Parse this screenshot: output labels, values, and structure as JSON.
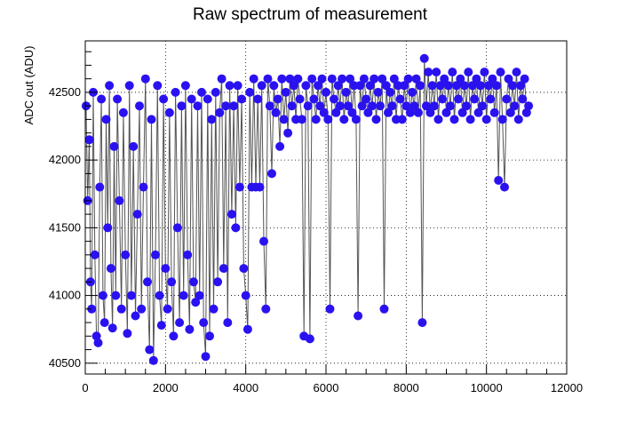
{
  "chart_data": {
    "type": "scatter",
    "title": "Raw spectrum of measurement",
    "xlabel": "",
    "ylabel": "ADC out (ADU)",
    "xlim": [
      0,
      12000
    ],
    "ylim": [
      40420,
      42880
    ],
    "x_ticks": [
      0,
      2000,
      4000,
      6000,
      8000,
      10000,
      12000
    ],
    "y_ticks": [
      40500,
      41000,
      41500,
      42000,
      42500
    ],
    "grid": true,
    "grid_style": "dotted",
    "marker_color": "#2a12f0",
    "line_color": "#555555",
    "series": [
      {
        "points": [
          [
            20,
            42400
          ],
          [
            60,
            41700
          ],
          [
            100,
            42150
          ],
          [
            130,
            41100
          ],
          [
            160,
            40900
          ],
          [
            200,
            42500
          ],
          [
            240,
            41300
          ],
          [
            280,
            40700
          ],
          [
            320,
            40650
          ],
          [
            360,
            41800
          ],
          [
            400,
            42450
          ],
          [
            440,
            41000
          ],
          [
            480,
            40800
          ],
          [
            520,
            42300
          ],
          [
            560,
            41500
          ],
          [
            600,
            42550
          ],
          [
            640,
            41200
          ],
          [
            680,
            40760
          ],
          [
            720,
            42100
          ],
          [
            760,
            41000
          ],
          [
            800,
            42450
          ],
          [
            850,
            41700
          ],
          [
            900,
            40900
          ],
          [
            950,
            42350
          ],
          [
            1000,
            41300
          ],
          [
            1050,
            40720
          ],
          [
            1100,
            42550
          ],
          [
            1150,
            41000
          ],
          [
            1200,
            42100
          ],
          [
            1250,
            40850
          ],
          [
            1300,
            41600
          ],
          [
            1350,
            42400
          ],
          [
            1400,
            40900
          ],
          [
            1450,
            41800
          ],
          [
            1500,
            42600
          ],
          [
            1550,
            41100
          ],
          [
            1600,
            40600
          ],
          [
            1650,
            42300
          ],
          [
            1700,
            40520
          ],
          [
            1750,
            41300
          ],
          [
            1800,
            42550
          ],
          [
            1850,
            41000
          ],
          [
            1900,
            40780
          ],
          [
            1950,
            42450
          ],
          [
            2000,
            41200
          ],
          [
            2050,
            40900
          ],
          [
            2100,
            42350
          ],
          [
            2150,
            41100
          ],
          [
            2200,
            40700
          ],
          [
            2250,
            42500
          ],
          [
            2300,
            41500
          ],
          [
            2350,
            40800
          ],
          [
            2400,
            42400
          ],
          [
            2450,
            41000
          ],
          [
            2500,
            42550
          ],
          [
            2550,
            41300
          ],
          [
            2600,
            40750
          ],
          [
            2650,
            42450
          ],
          [
            2700,
            41100
          ],
          [
            2750,
            40950
          ],
          [
            2800,
            42400
          ],
          [
            2850,
            41000
          ],
          [
            2900,
            42500
          ],
          [
            2950,
            40800
          ],
          [
            3000,
            40550
          ],
          [
            3050,
            42450
          ],
          [
            3100,
            40700
          ],
          [
            3150,
            42300
          ],
          [
            3200,
            40900
          ],
          [
            3250,
            42500
          ],
          [
            3300,
            41100
          ],
          [
            3350,
            42350
          ],
          [
            3400,
            42600
          ],
          [
            3450,
            41200
          ],
          [
            3500,
            42400
          ],
          [
            3550,
            40800
          ],
          [
            3600,
            42550
          ],
          [
            3650,
            41600
          ],
          [
            3700,
            42400
          ],
          [
            3750,
            41500
          ],
          [
            3800,
            42550
          ],
          [
            3850,
            41800
          ],
          [
            3900,
            42450
          ],
          [
            3950,
            41200
          ],
          [
            4000,
            41000
          ],
          [
            4050,
            40750
          ],
          [
            4100,
            42500
          ],
          [
            4150,
            41800
          ],
          [
            4200,
            42600
          ],
          [
            4250,
            41800
          ],
          [
            4300,
            42450
          ],
          [
            4350,
            41800
          ],
          [
            4400,
            42550
          ],
          [
            4450,
            41400
          ],
          [
            4500,
            40900
          ],
          [
            4550,
            42600
          ],
          [
            4600,
            42400
          ],
          [
            4650,
            41900
          ],
          [
            4700,
            42550
          ],
          [
            4750,
            42350
          ],
          [
            4800,
            42450
          ],
          [
            4850,
            42100
          ],
          [
            4900,
            42600
          ],
          [
            4950,
            42300
          ],
          [
            5000,
            42500
          ],
          [
            5050,
            42200
          ],
          [
            5100,
            42600
          ],
          [
            5150,
            42400
          ],
          [
            5200,
            42550
          ],
          [
            5250,
            42300
          ],
          [
            5300,
            42600
          ],
          [
            5350,
            42450
          ],
          [
            5400,
            42300
          ],
          [
            5450,
            40700
          ],
          [
            5500,
            42550
          ],
          [
            5550,
            42400
          ],
          [
            5600,
            40680
          ],
          [
            5650,
            42600
          ],
          [
            5700,
            42450
          ],
          [
            5750,
            42300
          ],
          [
            5800,
            42550
          ],
          [
            5850,
            42400
          ],
          [
            5900,
            42600
          ],
          [
            5950,
            42350
          ],
          [
            6000,
            42500
          ],
          [
            6050,
            42300
          ],
          [
            6100,
            40900
          ],
          [
            6150,
            42600
          ],
          [
            6200,
            42450
          ],
          [
            6250,
            42350
          ],
          [
            6300,
            42550
          ],
          [
            6350,
            42400
          ],
          [
            6400,
            42600
          ],
          [
            6450,
            42300
          ],
          [
            6500,
            42500
          ],
          [
            6550,
            42400
          ],
          [
            6600,
            42600
          ],
          [
            6650,
            42350
          ],
          [
            6700,
            42550
          ],
          [
            6750,
            42300
          ],
          [
            6800,
            40850
          ],
          [
            6850,
            42550
          ],
          [
            6900,
            42400
          ],
          [
            6950,
            42600
          ],
          [
            7000,
            42450
          ],
          [
            7050,
            42350
          ],
          [
            7100,
            42550
          ],
          [
            7150,
            42400
          ],
          [
            7200,
            42600
          ],
          [
            7250,
            42300
          ],
          [
            7300,
            42500
          ],
          [
            7350,
            42400
          ],
          [
            7400,
            42600
          ],
          [
            7450,
            40900
          ],
          [
            7500,
            42550
          ],
          [
            7550,
            42350
          ],
          [
            7600,
            42500
          ],
          [
            7650,
            42400
          ],
          [
            7700,
            42600
          ],
          [
            7750,
            42300
          ],
          [
            7800,
            42550
          ],
          [
            7850,
            42450
          ],
          [
            7900,
            42300
          ],
          [
            7950,
            42550
          ],
          [
            8000,
            42400
          ],
          [
            8050,
            42600
          ],
          [
            8100,
            42350
          ],
          [
            8150,
            42500
          ],
          [
            8200,
            42400
          ],
          [
            8250,
            42600
          ],
          [
            8300,
            42350
          ],
          [
            8350,
            42550
          ],
          [
            8400,
            40800
          ],
          [
            8450,
            42750
          ],
          [
            8500,
            42400
          ],
          [
            8550,
            42650
          ],
          [
            8600,
            42350
          ],
          [
            8650,
            42550
          ],
          [
            8700,
            42400
          ],
          [
            8750,
            42650
          ],
          [
            8800,
            42300
          ],
          [
            8850,
            42550
          ],
          [
            8900,
            42450
          ],
          [
            8950,
            42600
          ],
          [
            9000,
            42350
          ],
          [
            9050,
            42550
          ],
          [
            9100,
            42400
          ],
          [
            9150,
            42650
          ],
          [
            9200,
            42300
          ],
          [
            9250,
            42550
          ],
          [
            9300,
            42450
          ],
          [
            9350,
            42600
          ],
          [
            9400,
            42350
          ],
          [
            9450,
            42550
          ],
          [
            9500,
            42400
          ],
          [
            9550,
            42650
          ],
          [
            9600,
            42300
          ],
          [
            9650,
            42550
          ],
          [
            9700,
            42450
          ],
          [
            9750,
            42600
          ],
          [
            9800,
            42350
          ],
          [
            9850,
            42550
          ],
          [
            9900,
            42400
          ],
          [
            9950,
            42650
          ],
          [
            10000,
            42300
          ],
          [
            10050,
            42550
          ],
          [
            10100,
            42450
          ],
          [
            10150,
            42600
          ],
          [
            10200,
            42350
          ],
          [
            10250,
            42550
          ],
          [
            10300,
            41850
          ],
          [
            10350,
            42650
          ],
          [
            10400,
            42300
          ],
          [
            10450,
            41800
          ],
          [
            10500,
            42450
          ],
          [
            10550,
            42600
          ],
          [
            10600,
            42350
          ],
          [
            10650,
            42550
          ],
          [
            10700,
            42400
          ],
          [
            10750,
            42650
          ],
          [
            10800,
            42300
          ],
          [
            10850,
            42550
          ],
          [
            10900,
            42450
          ],
          [
            10950,
            42600
          ],
          [
            11000,
            42350
          ],
          [
            11050,
            42400
          ]
        ]
      }
    ]
  }
}
